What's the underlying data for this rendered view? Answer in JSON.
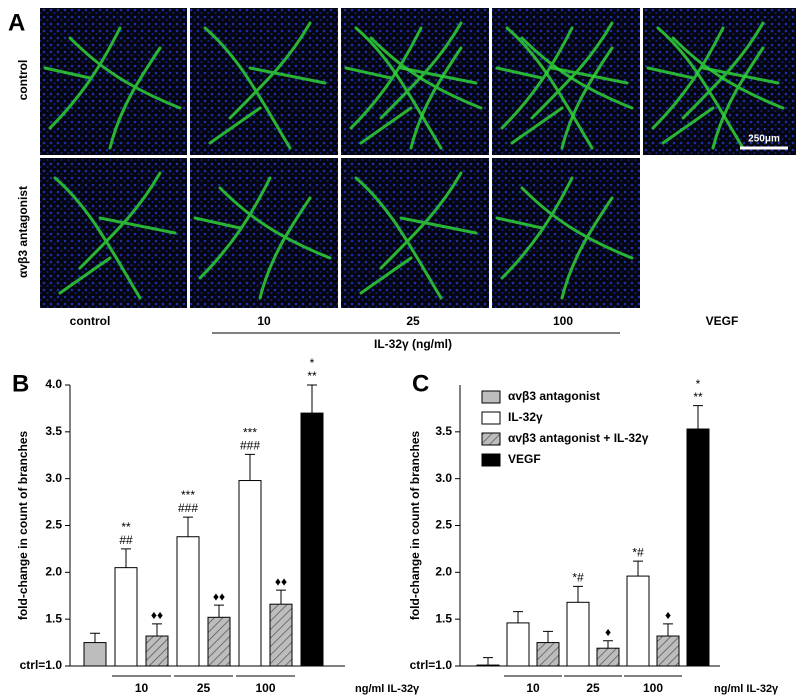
{
  "panel_a": {
    "label": "A",
    "row_labels": [
      "control",
      "αvβ3 antagonist"
    ],
    "column_labels": [
      "control",
      "10",
      "25",
      "100",
      "VEGF"
    ],
    "group_label": "IL-32γ (ng/ml)",
    "scale_bar": "250μm"
  },
  "chart_data": [
    {
      "type": "bar",
      "label": "B",
      "y_label": "fold-change in count of branches",
      "x_label": "ng/ml IL-32γ",
      "categories": [
        null,
        "10",
        "25",
        "100",
        null
      ],
      "ylim": [
        1.0,
        4.0
      ],
      "yticks": [
        {
          "value": 1.0,
          "label": "ctrl=1.0"
        },
        1.5,
        {
          "value": 2.0,
          "label": "2.0"
        },
        2.5,
        {
          "value": 3.0,
          "label": "3.0"
        },
        3.5,
        {
          "value": 4.0,
          "label": "4.0"
        }
      ],
      "series": [
        {
          "color": "#bdbdbd",
          "hatch": false,
          "values": [
            1.25,
            null,
            null,
            null,
            null
          ],
          "errors": [
            0.1,
            null,
            null,
            null,
            null
          ]
        },
        {
          "color": "#ffffff",
          "hatch": false,
          "values": [
            null,
            2.05,
            2.38,
            2.98,
            null
          ],
          "errors": [
            null,
            0.2,
            0.21,
            0.28,
            null
          ],
          "annotations": [
            null,
            [
              "**",
              "##"
            ],
            [
              "***",
              "###"
            ],
            [
              "***",
              "###"
            ],
            null
          ]
        },
        {
          "color": "#bdbdbd",
          "hatch": true,
          "values": [
            null,
            1.32,
            1.52,
            1.66,
            null
          ],
          "errors": [
            null,
            0.13,
            0.13,
            0.15,
            null
          ],
          "annotations": [
            null,
            [
              "♦♦"
            ],
            [
              "♦♦"
            ],
            [
              "♦♦"
            ],
            null
          ]
        },
        {
          "color": "#000000",
          "hatch": false,
          "values": [
            null,
            null,
            null,
            null,
            3.7
          ],
          "errors": [
            null,
            null,
            null,
            null,
            0.3
          ],
          "annotations": [
            null,
            null,
            null,
            null,
            [
              "*",
              "**"
            ]
          ]
        }
      ]
    },
    {
      "type": "bar",
      "label": "C",
      "y_label": "fold-change in count of branches",
      "x_label": "ng/ml IL-32γ",
      "categories": [
        null,
        "10",
        "25",
        "100",
        null
      ],
      "ylim": [
        1.0,
        4.0
      ],
      "yticks": [
        {
          "value": 1.0,
          "label": "ctrl=1.0"
        },
        1.5,
        {
          "value": 2.0,
          "label": "2.0"
        },
        2.5,
        {
          "value": 3.0,
          "label": "3.0"
        },
        3.5
      ],
      "legend": "upper left",
      "series": [
        {
          "name": "αvβ3 antagonist",
          "color": "#bdbdbd",
          "hatch": false,
          "values": [
            1.01,
            null,
            null,
            null,
            null
          ],
          "errors": [
            0.08,
            null,
            null,
            null,
            null
          ]
        },
        {
          "name": "IL-32γ",
          "color": "#ffffff",
          "hatch": false,
          "values": [
            null,
            1.46,
            1.68,
            1.96,
            null
          ],
          "errors": [
            null,
            0.12,
            0.17,
            0.16,
            null
          ],
          "annotations": [
            null,
            null,
            [
              "*#"
            ],
            [
              "*#"
            ],
            null
          ]
        },
        {
          "name": "αvβ3 antagonist + IL-32γ",
          "color": "#bdbdbd",
          "hatch": true,
          "values": [
            null,
            1.25,
            1.19,
            1.32,
            null
          ],
          "errors": [
            null,
            0.12,
            0.08,
            0.13,
            null
          ],
          "annotations": [
            null,
            null,
            [
              "♦"
            ],
            [
              "♦"
            ],
            null
          ]
        },
        {
          "name": "VEGF",
          "color": "#000000",
          "hatch": false,
          "values": [
            null,
            null,
            null,
            null,
            3.53
          ],
          "errors": [
            null,
            null,
            null,
            null,
            0.25
          ],
          "annotations": [
            null,
            null,
            null,
            null,
            [
              "*",
              "**"
            ]
          ]
        }
      ]
    }
  ]
}
